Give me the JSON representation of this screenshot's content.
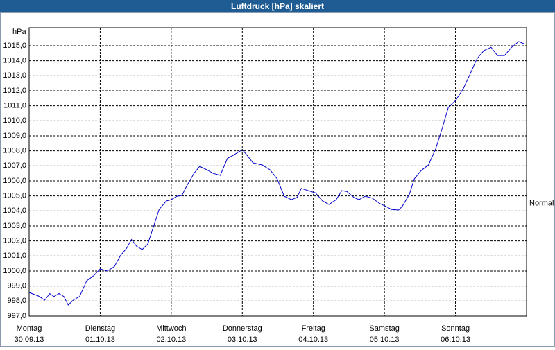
{
  "chart_data": {
    "type": "line",
    "title": "Luftdruck [hPa] skaliert",
    "y_label": "hPa",
    "annotation": {
      "text": "Normal",
      "value": 1004.5
    },
    "x": [
      0,
      0.13,
      0.22,
      0.29,
      0.35,
      0.42,
      0.49,
      0.55,
      0.62,
      0.71,
      0.81,
      0.91,
      1.0,
      1.1,
      1.2,
      1.29,
      1.37,
      1.44,
      1.51,
      1.59,
      1.67,
      1.74,
      1.83,
      1.93,
      2.0,
      2.08,
      2.15,
      2.22,
      2.32,
      2.4,
      2.5,
      2.59,
      2.69,
      2.79,
      2.87,
      2.94,
      3.0,
      3.05,
      3.15,
      3.28,
      3.39,
      3.49,
      3.59,
      3.69,
      3.77,
      3.83,
      3.93,
      4.03,
      4.13,
      4.22,
      4.32,
      4.4,
      4.47,
      4.57,
      4.64,
      4.73,
      4.83,
      4.93,
      5.02,
      5.1,
      5.2,
      5.25,
      5.35,
      5.42,
      5.52,
      5.62,
      5.72,
      5.81,
      5.9,
      6.0,
      6.11,
      6.2,
      6.3,
      6.4,
      6.5,
      6.59,
      6.69,
      6.79,
      6.89,
      6.96
    ],
    "series": [
      {
        "name": "Luftdruck",
        "color": "#0000cc",
        "values": [
          998.57,
          998.34,
          998.06,
          998.5,
          998.3,
          998.5,
          998.3,
          997.74,
          998.06,
          998.3,
          999.35,
          999.7,
          1000.14,
          1000.0,
          1000.3,
          1001.06,
          1001.5,
          1002.1,
          1001.66,
          1001.43,
          1001.8,
          1002.8,
          1004.1,
          1004.66,
          1004.75,
          1004.98,
          1005.03,
          1005.68,
          1006.5,
          1006.97,
          1006.74,
          1006.5,
          1006.37,
          1007.5,
          1007.7,
          1007.9,
          1008.07,
          1007.8,
          1007.2,
          1007.06,
          1006.74,
          1006.14,
          1004.98,
          1004.75,
          1004.9,
          1005.5,
          1005.35,
          1005.2,
          1004.66,
          1004.43,
          1004.75,
          1005.35,
          1005.3,
          1004.9,
          1004.75,
          1004.98,
          1004.85,
          1004.5,
          1004.3,
          1004.1,
          1004.06,
          1004.3,
          1005.1,
          1006.14,
          1006.7,
          1007.06,
          1008.12,
          1009.46,
          1010.9,
          1011.35,
          1012.14,
          1013.06,
          1014.12,
          1014.68,
          1014.9,
          1014.35,
          1014.35,
          1014.9,
          1015.28,
          1015.14
        ]
      }
    ],
    "xlim": [
      0,
      7
    ],
    "xticks": [
      {
        "value": 0,
        "label": "Montag",
        "date": "30.09.13"
      },
      {
        "value": 1,
        "label": "Dienstag",
        "date": "01.10.13"
      },
      {
        "value": 2,
        "label": "Mittwoch",
        "date": "02.10.13"
      },
      {
        "value": 3,
        "label": "Donnerstag",
        "date": "03.10.13"
      },
      {
        "value": 4,
        "label": "Freitag",
        "date": "04.10.13"
      },
      {
        "value": 5,
        "label": "Samstag",
        "date": "05.10.13"
      },
      {
        "value": 6,
        "label": "Sonntag",
        "date": "06.10.13"
      }
    ],
    "ylim": [
      997,
      1016.2
    ],
    "yticks": [
      {
        "value": 997,
        "label": "997,0"
      },
      {
        "value": 998,
        "label": "998,0"
      },
      {
        "value": 999,
        "label": "999,0"
      },
      {
        "value": 1000,
        "label": "1000,0"
      },
      {
        "value": 1001,
        "label": "1001,0"
      },
      {
        "value": 1002,
        "label": "1002,0"
      },
      {
        "value": 1003,
        "label": "1003,0"
      },
      {
        "value": 1004,
        "label": "1004,0"
      },
      {
        "value": 1005,
        "label": "1005,0"
      },
      {
        "value": 1006,
        "label": "1006,0"
      },
      {
        "value": 1007,
        "label": "1007,0"
      },
      {
        "value": 1008,
        "label": "1008,0"
      },
      {
        "value": 1009,
        "label": "1009,0"
      },
      {
        "value": 1010,
        "label": "1010,0"
      },
      {
        "value": 1011,
        "label": "1011,0"
      },
      {
        "value": 1012,
        "label": "1012,0"
      },
      {
        "value": 1013,
        "label": "1013,0"
      },
      {
        "value": 1014,
        "label": "1014,0"
      },
      {
        "value": 1015,
        "label": "1015,0"
      }
    ],
    "grid": true
  }
}
